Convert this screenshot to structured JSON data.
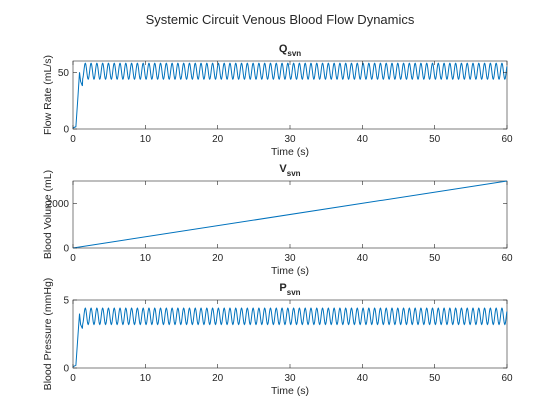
{
  "figure": {
    "title": "Systemic Circuit Venous Blood Flow Dynamics",
    "colors": {
      "line": "#0072bd",
      "axes": "#262626"
    }
  },
  "chart_data": [
    {
      "type": "line",
      "title_main": "Q",
      "title_sub": "svn",
      "xlabel": "Time (s)",
      "ylabel": "Flow Rate (mL/s)",
      "xlim": [
        0,
        60
      ],
      "ylim": [
        0,
        60
      ],
      "xticks": [
        0,
        10,
        20,
        30,
        40,
        50,
        60
      ],
      "yticks": [
        0,
        50
      ],
      "grid": false,
      "series": [
        {
          "color": "#0072bd",
          "initial": 0,
          "rise_end_time": 1.3,
          "mean": 51,
          "amplitude": 7,
          "period": 0.8,
          "transient_points": [
            [
              0,
              1
            ],
            [
              0.4,
              2
            ],
            [
              0.7,
              30
            ],
            [
              0.9,
              50
            ],
            [
              1.05,
              42
            ],
            [
              1.3,
              38
            ]
          ]
        }
      ]
    },
    {
      "type": "line",
      "title_main": "V",
      "title_sub": "svn",
      "xlabel": "Time (s)",
      "ylabel": "Blood Volume (mL)",
      "xlim": [
        0,
        60
      ],
      "ylim": [
        0,
        3000
      ],
      "xticks": [
        0,
        10,
        20,
        30,
        40,
        50,
        60
      ],
      "yticks": [
        0,
        2000
      ],
      "grid": false,
      "series": [
        {
          "color": "#0072bd",
          "points": [
            [
              0,
              0
            ],
            [
              60,
              3000
            ]
          ]
        }
      ]
    },
    {
      "type": "line",
      "title_main": "P",
      "title_sub": "svn",
      "xlabel": "Time (s)",
      "ylabel": "Blood Pressure (mmHg)",
      "xlim": [
        0,
        60
      ],
      "ylim": [
        0,
        5
      ],
      "xticks": [
        0,
        10,
        20,
        30,
        40,
        50,
        60
      ],
      "yticks": [
        0,
        5
      ],
      "grid": false,
      "series": [
        {
          "color": "#0072bd",
          "initial": 0,
          "rise_end_time": 1.3,
          "mean": 3.8,
          "amplitude": 0.6,
          "period": 0.8,
          "transient_points": [
            [
              0,
              0.1
            ],
            [
              0.4,
              0.2
            ],
            [
              0.7,
              2.5
            ],
            [
              0.9,
              4.0
            ],
            [
              1.05,
              3.2
            ],
            [
              1.3,
              2.9
            ]
          ]
        }
      ]
    }
  ]
}
